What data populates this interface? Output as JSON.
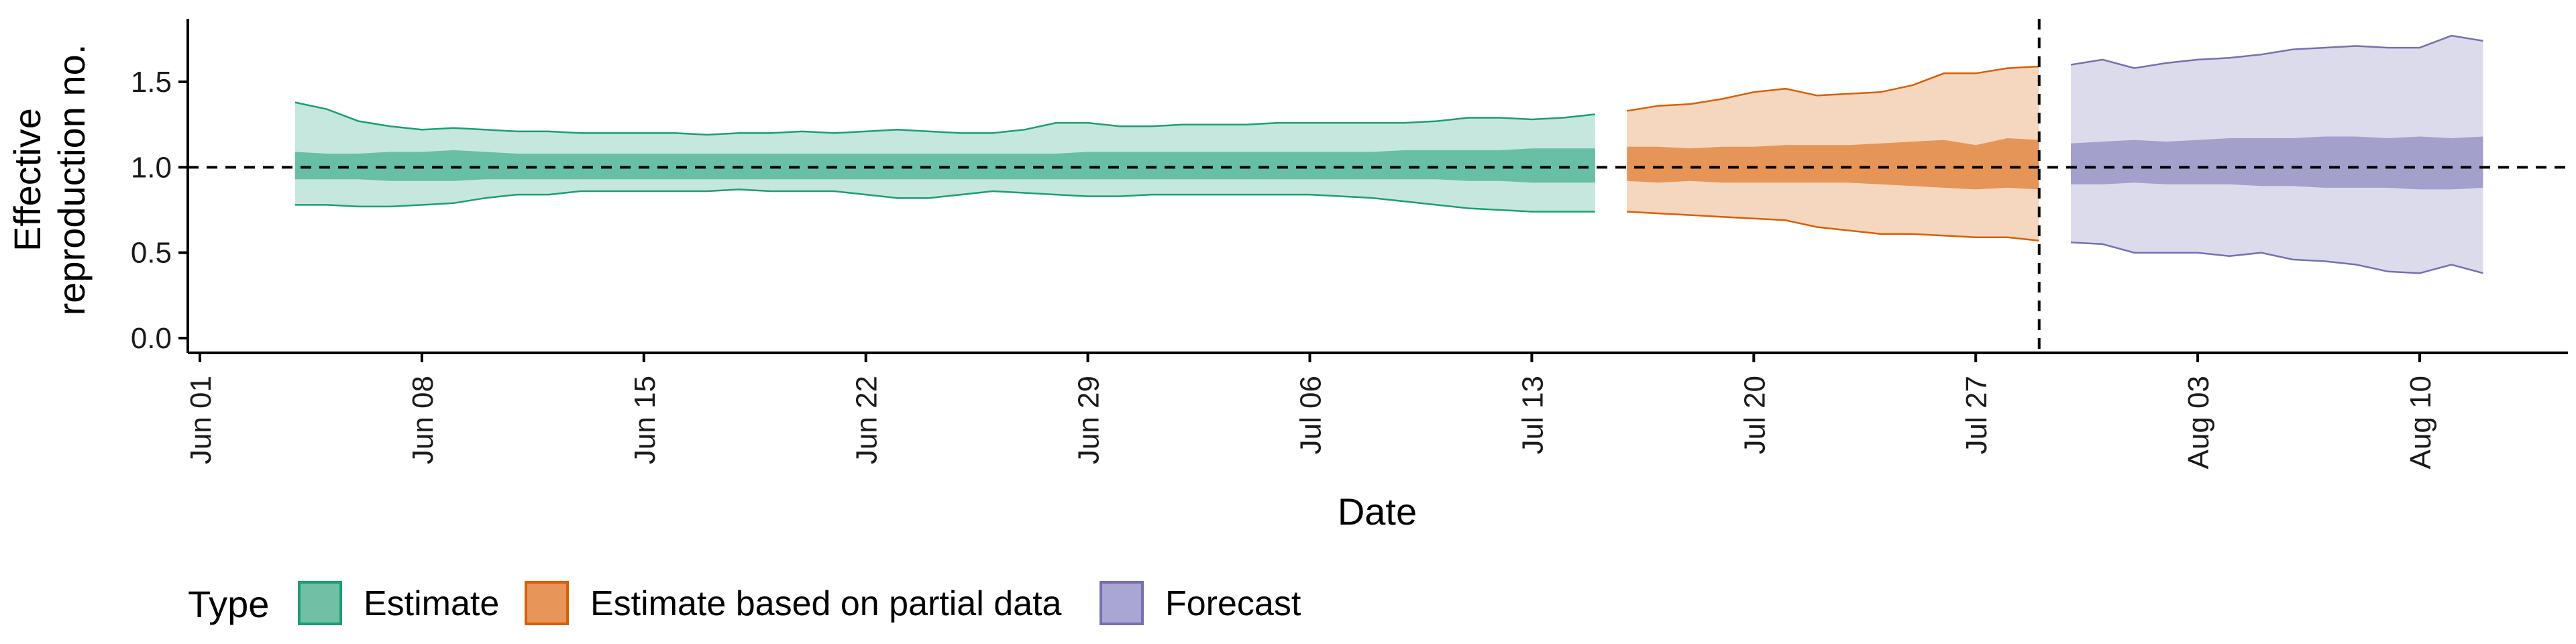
{
  "chart_data": {
    "type": "area",
    "xlabel": "Date",
    "ylabel_lines": [
      "Effective",
      "reproduction no."
    ],
    "ylim": [
      -0.05,
      1.85
    ],
    "yticks": [
      0.0,
      0.5,
      1.0,
      1.5
    ],
    "ytick_labels": [
      "0.0",
      "0.5",
      "1.0",
      "1.5"
    ],
    "xlim_day": [
      -0.5,
      53.5
    ],
    "xtick_days": [
      0,
      7,
      14,
      21,
      28,
      35,
      42,
      49,
      56,
      63,
      70
    ],
    "xtick_labels": [
      "Jun 01",
      "Jun 08",
      "Jun 15",
      "Jun 22",
      "Jun 29",
      "Jul 06",
      "Jul 13",
      "Jul 20",
      "Jul 27",
      "Aug 03",
      "Aug 10"
    ],
    "x_day_origin": "Jun 01",
    "reference_line_y": 1.0,
    "forecast_start_day": 58,
    "legend": {
      "title": "Type",
      "entries": [
        {
          "label": "Estimate",
          "color": "#1b9e77"
        },
        {
          "label": "Estimate based on partial data",
          "color": "#d95f02"
        },
        {
          "label": "Forecast",
          "color": "#7570b3"
        }
      ]
    },
    "series": [
      {
        "name": "Estimate",
        "color": "#1b9e77",
        "day": [
          3,
          4,
          5,
          6,
          7,
          8,
          9,
          10,
          11,
          12,
          13,
          14,
          15,
          16,
          17,
          18,
          19,
          20,
          21,
          22,
          23,
          24,
          25,
          26,
          27,
          28,
          29,
          30,
          31,
          32,
          33,
          34,
          35,
          36,
          37,
          38,
          39,
          40,
          41,
          42,
          43,
          44
        ],
        "upper90": [
          1.38,
          1.34,
          1.27,
          1.24,
          1.22,
          1.23,
          1.22,
          1.21,
          1.21,
          1.2,
          1.2,
          1.2,
          1.2,
          1.19,
          1.2,
          1.2,
          1.21,
          1.2,
          1.21,
          1.22,
          1.21,
          1.2,
          1.2,
          1.22,
          1.26,
          1.26,
          1.24,
          1.24,
          1.25,
          1.25,
          1.25,
          1.26,
          1.26,
          1.26,
          1.26,
          1.26,
          1.27,
          1.29,
          1.29,
          1.28,
          1.29,
          1.31
        ],
        "upper50": [
          1.09,
          1.08,
          1.08,
          1.09,
          1.09,
          1.1,
          1.09,
          1.08,
          1.08,
          1.08,
          1.08,
          1.08,
          1.08,
          1.08,
          1.08,
          1.08,
          1.08,
          1.08,
          1.08,
          1.08,
          1.08,
          1.08,
          1.08,
          1.08,
          1.08,
          1.09,
          1.09,
          1.09,
          1.09,
          1.09,
          1.09,
          1.09,
          1.09,
          1.09,
          1.09,
          1.1,
          1.1,
          1.1,
          1.1,
          1.11,
          1.11,
          1.11
        ],
        "lower50": [
          0.93,
          0.93,
          0.93,
          0.92,
          0.92,
          0.92,
          0.93,
          0.93,
          0.93,
          0.93,
          0.93,
          0.93,
          0.93,
          0.93,
          0.93,
          0.93,
          0.93,
          0.93,
          0.93,
          0.93,
          0.93,
          0.93,
          0.93,
          0.93,
          0.93,
          0.93,
          0.93,
          0.93,
          0.93,
          0.93,
          0.93,
          0.93,
          0.93,
          0.93,
          0.93,
          0.93,
          0.93,
          0.92,
          0.92,
          0.91,
          0.91,
          0.91
        ],
        "lower90": [
          0.78,
          0.78,
          0.77,
          0.77,
          0.78,
          0.79,
          0.82,
          0.84,
          0.84,
          0.86,
          0.86,
          0.86,
          0.86,
          0.86,
          0.87,
          0.86,
          0.86,
          0.86,
          0.84,
          0.82,
          0.82,
          0.84,
          0.86,
          0.85,
          0.84,
          0.83,
          0.83,
          0.84,
          0.84,
          0.84,
          0.84,
          0.84,
          0.84,
          0.83,
          0.82,
          0.8,
          0.78,
          0.76,
          0.75,
          0.74,
          0.74,
          0.74
        ]
      },
      {
        "name": "Estimate based on partial data",
        "color": "#d95f02",
        "day": [
          45,
          46,
          47,
          48,
          49,
          50,
          51,
          52,
          53,
          54,
          55,
          56,
          57,
          58
        ],
        "upper90": [
          1.33,
          1.36,
          1.37,
          1.4,
          1.44,
          1.46,
          1.42,
          1.43,
          1.44,
          1.48,
          1.55,
          1.55,
          1.58,
          1.59
        ],
        "upper50": [
          1.12,
          1.12,
          1.11,
          1.12,
          1.12,
          1.13,
          1.13,
          1.13,
          1.14,
          1.15,
          1.16,
          1.13,
          1.17,
          1.16
        ],
        "lower50": [
          0.92,
          0.91,
          0.92,
          0.91,
          0.91,
          0.91,
          0.91,
          0.91,
          0.9,
          0.89,
          0.88,
          0.87,
          0.88,
          0.87
        ],
        "lower90": [
          0.74,
          0.73,
          0.72,
          0.71,
          0.7,
          0.69,
          0.65,
          0.63,
          0.61,
          0.61,
          0.6,
          0.59,
          0.59,
          0.57
        ]
      },
      {
        "name": "Forecast",
        "color": "#7570b3",
        "day": [
          59,
          60,
          61,
          62,
          63,
          64,
          65,
          66,
          67,
          68,
          69,
          70,
          71,
          72
        ],
        "upper90": [
          1.6,
          1.63,
          1.58,
          1.61,
          1.63,
          1.64,
          1.66,
          1.69,
          1.7,
          1.71,
          1.7,
          1.7,
          1.77,
          1.74
        ],
        "upper50": [
          1.14,
          1.15,
          1.16,
          1.15,
          1.16,
          1.17,
          1.17,
          1.17,
          1.18,
          1.18,
          1.17,
          1.18,
          1.17,
          1.18
        ],
        "lower50": [
          0.9,
          0.9,
          0.91,
          0.9,
          0.9,
          0.9,
          0.89,
          0.89,
          0.88,
          0.88,
          0.88,
          0.87,
          0.87,
          0.88
        ],
        "lower90": [
          0.56,
          0.55,
          0.5,
          0.5,
          0.5,
          0.48,
          0.5,
          0.46,
          0.45,
          0.43,
          0.39,
          0.38,
          0.43,
          0.38
        ]
      }
    ]
  }
}
